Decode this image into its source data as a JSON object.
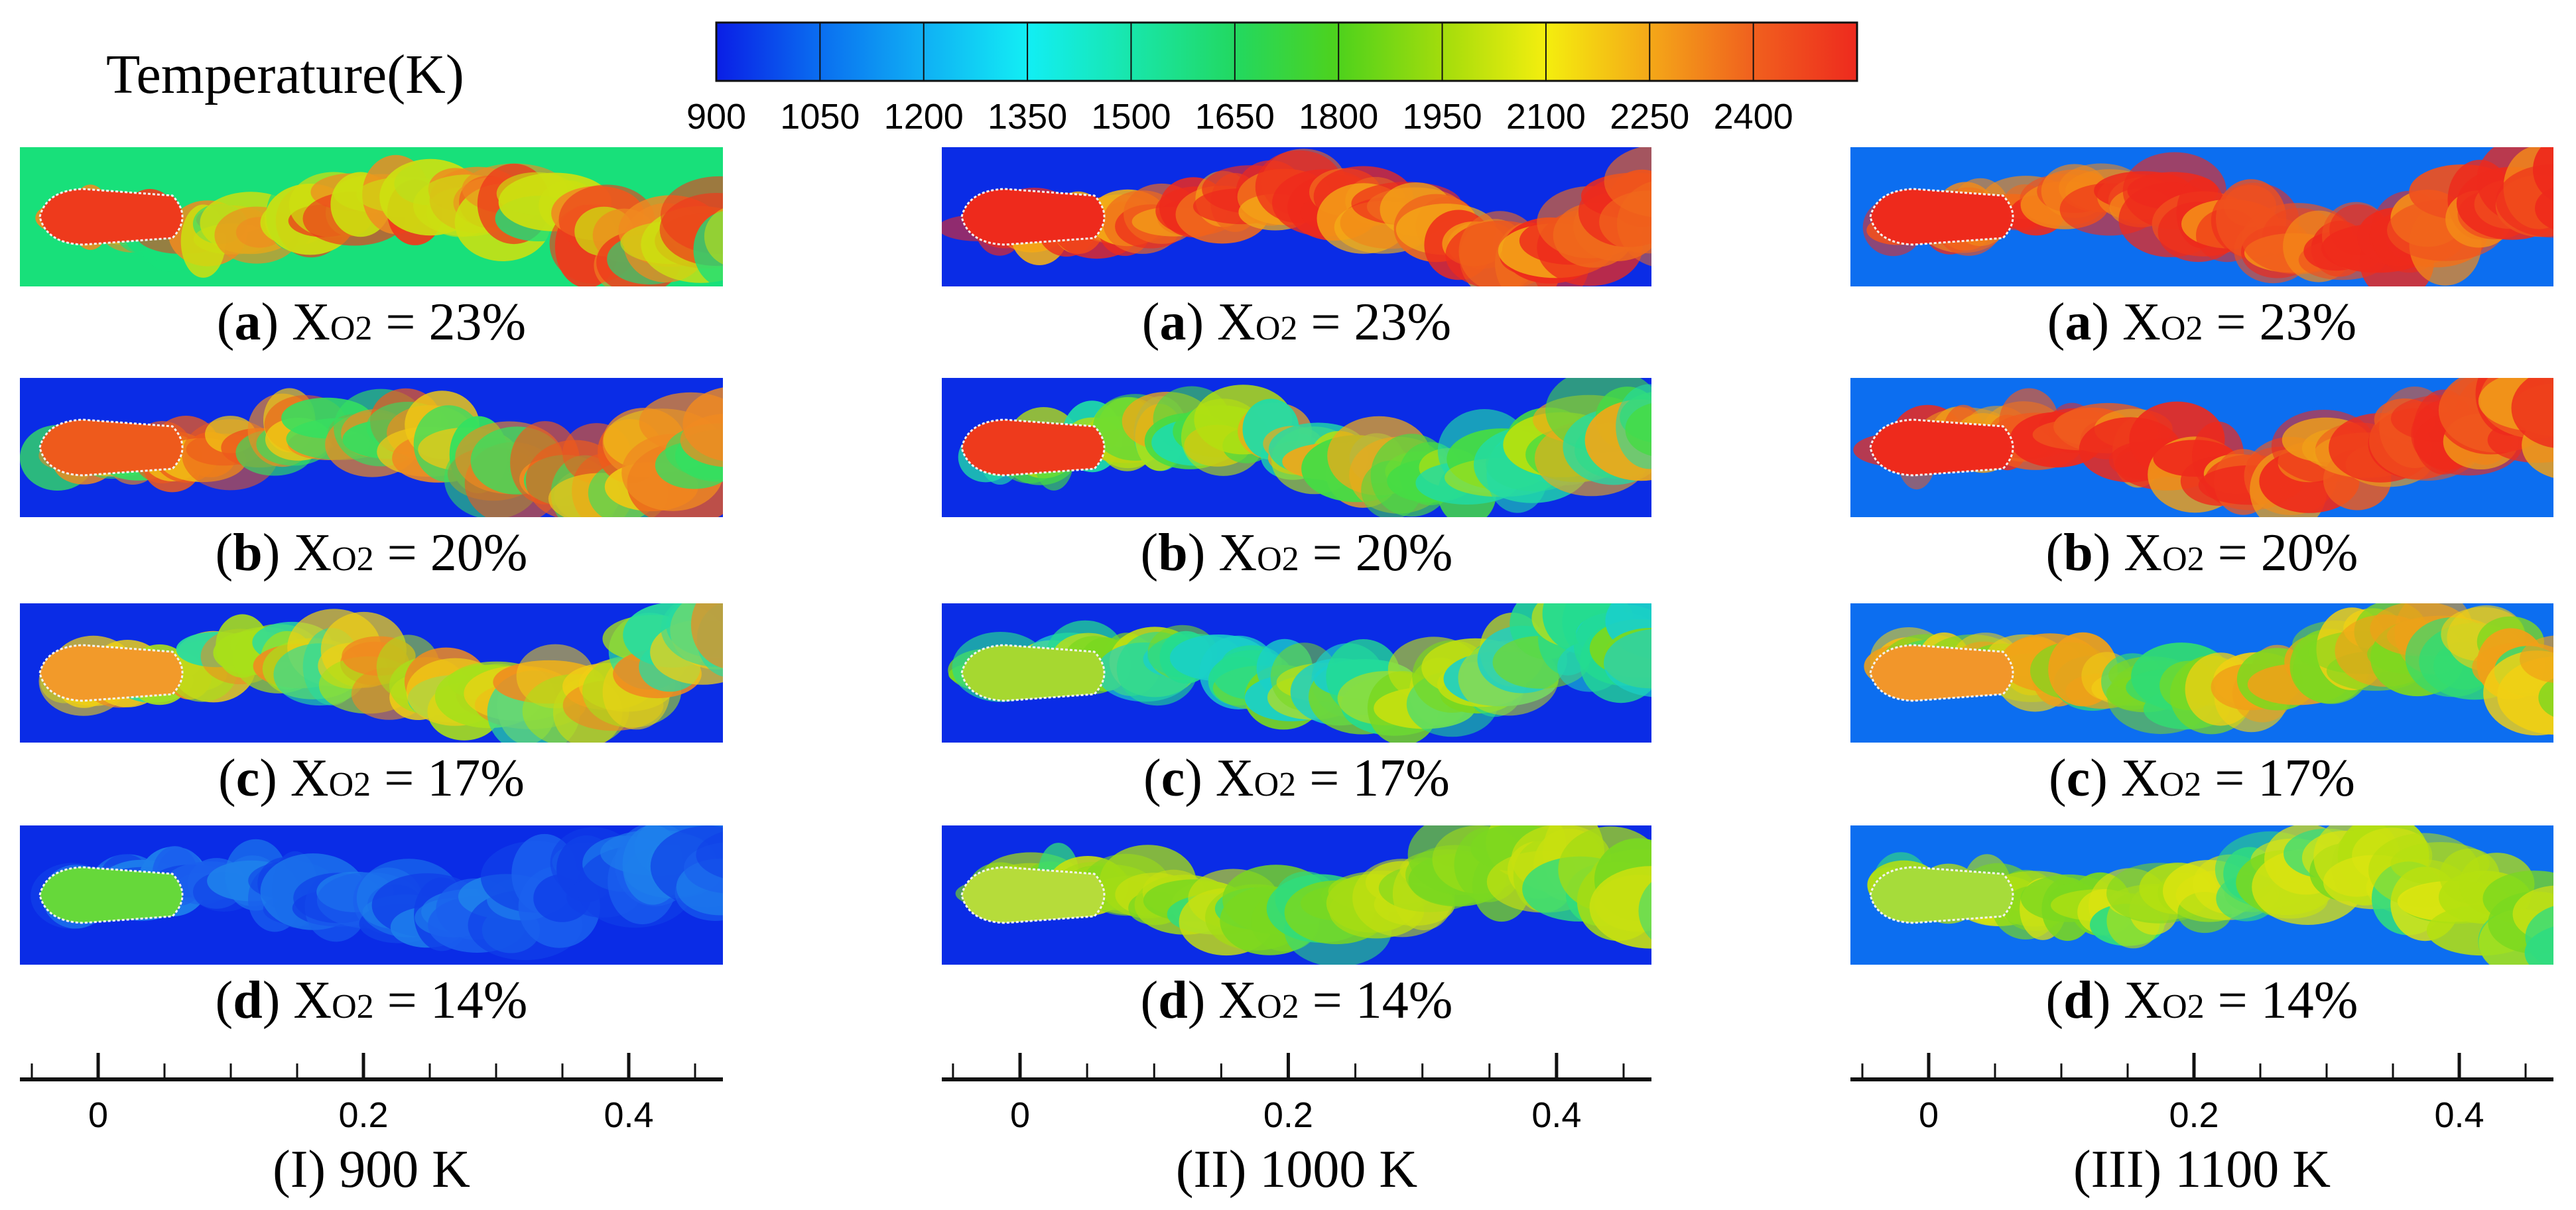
{
  "colorbar": {
    "title": "Temperature(K)",
    "ticks": [
      "900",
      "1050",
      "1200",
      "1350",
      "1500",
      "1650",
      "1800",
      "1950",
      "2100",
      "2250",
      "2400"
    ],
    "colors": [
      "#0a1ee6",
      "#0a6ef0",
      "#10b0f4",
      "#12eef4",
      "#18e6aa",
      "#22d860",
      "#4ed21c",
      "#a2dc0c",
      "#f4ee0e",
      "#f4a818",
      "#f0601e",
      "#ee2a1e"
    ]
  },
  "columns": [
    {
      "title": "(I) 900 K",
      "axis": {
        "ticks": [
          "0",
          "0.2",
          "0.4"
        ]
      },
      "panels": [
        {
          "letter": "a",
          "prefix": "(",
          "suffix": ") X",
          "sub": "O2",
          "value": " = 23%",
          "bg": "#18e07a",
          "core": "#ee3a1c",
          "mix": [
            "#f08a20",
            "#cce010",
            "#18e07a",
            "#ee3a1c"
          ]
        },
        {
          "letter": "b",
          "prefix": "(",
          "suffix": ") X",
          "sub": "O2",
          "value": " = 20%",
          "bg": "#0a2ce6",
          "core": "#ee5a1c",
          "mix": [
            "#f08a20",
            "#f0c814",
            "#34e060",
            "#ee5a1c"
          ]
        },
        {
          "letter": "c",
          "prefix": "(",
          "suffix": ") X",
          "sub": "O2",
          "value": " = 17%",
          "bg": "#0a2ce6",
          "core": "#f29a2a",
          "mix": [
            "#a8e01a",
            "#f0d014",
            "#28dca0",
            "#f08a20"
          ]
        },
        {
          "letter": "d",
          "prefix": "(",
          "suffix": ") X",
          "sub": "O2",
          "value": " = 14%",
          "bg": "#0a2ce6",
          "core": "#66d83a",
          "mix": [
            "#1a60ee",
            "#1e80ec",
            "#1040e8"
          ]
        }
      ]
    },
    {
      "title": "(II) 1000 K",
      "axis": {
        "ticks": [
          "0",
          "0.2",
          "0.4"
        ]
      },
      "panels": [
        {
          "letter": "a",
          "prefix": "(",
          "suffix": ") X",
          "sub": "O2",
          "value": " = 23%",
          "bg": "#0a2ce6",
          "core": "#ee2a1c",
          "mix": [
            "#ee2a1c",
            "#f06a1c",
            "#f4b016",
            "#ee2a1c"
          ]
        },
        {
          "letter": "b",
          "prefix": "(",
          "suffix": ") X",
          "sub": "O2",
          "value": " = 20%",
          "bg": "#0a2ce6",
          "core": "#ee3a1c",
          "mix": [
            "#46dc44",
            "#b4e010",
            "#f0a818",
            "#20dca8"
          ]
        },
        {
          "letter": "c",
          "prefix": "(",
          "suffix": ") X",
          "sub": "O2",
          "value": " = 17%",
          "bg": "#0a2ce6",
          "core": "#a6d830",
          "mix": [
            "#24dc90",
            "#7ad820",
            "#c4e010",
            "#1ad0c8"
          ]
        },
        {
          "letter": "d",
          "prefix": "(",
          "suffix": ") X",
          "sub": "O2",
          "value": " = 14%",
          "bg": "#0a2ce6",
          "core": "#b6dc3a",
          "mix": [
            "#7ad820",
            "#a4dc14",
            "#30dc7c",
            "#c8e010"
          ]
        }
      ]
    },
    {
      "title": "(III) 1100 K",
      "axis": {
        "ticks": [
          "0",
          "0.2",
          "0.4"
        ]
      },
      "panels": [
        {
          "letter": "a",
          "prefix": "(",
          "suffix": ") X",
          "sub": "O2",
          "value": " = 23%",
          "bg": "#0c6ef0",
          "core": "#ee2a1c",
          "mix": [
            "#ee2a1c",
            "#f0501e",
            "#ee2a1c",
            "#f48a18"
          ]
        },
        {
          "letter": "b",
          "prefix": "(",
          "suffix": ") X",
          "sub": "O2",
          "value": " = 20%",
          "bg": "#0c6ef0",
          "core": "#ee2a1c",
          "mix": [
            "#ee2a1c",
            "#f05a1e",
            "#f0a018",
            "#ee2a1c"
          ]
        },
        {
          "letter": "c",
          "prefix": "(",
          "suffix": ") X",
          "sub": "O2",
          "value": " = 17%",
          "bg": "#0c6ef0",
          "core": "#f2962a",
          "mix": [
            "#7ed820",
            "#f0d014",
            "#32dc72",
            "#f0a018"
          ]
        },
        {
          "letter": "d",
          "prefix": "(",
          "suffix": ") X",
          "sub": "O2",
          "value": " = 14%",
          "bg": "#0c6ef0",
          "core": "#a6dc3a",
          "mix": [
            "#7ad820",
            "#dce410",
            "#30dc80",
            "#b4e010"
          ]
        }
      ]
    }
  ]
}
